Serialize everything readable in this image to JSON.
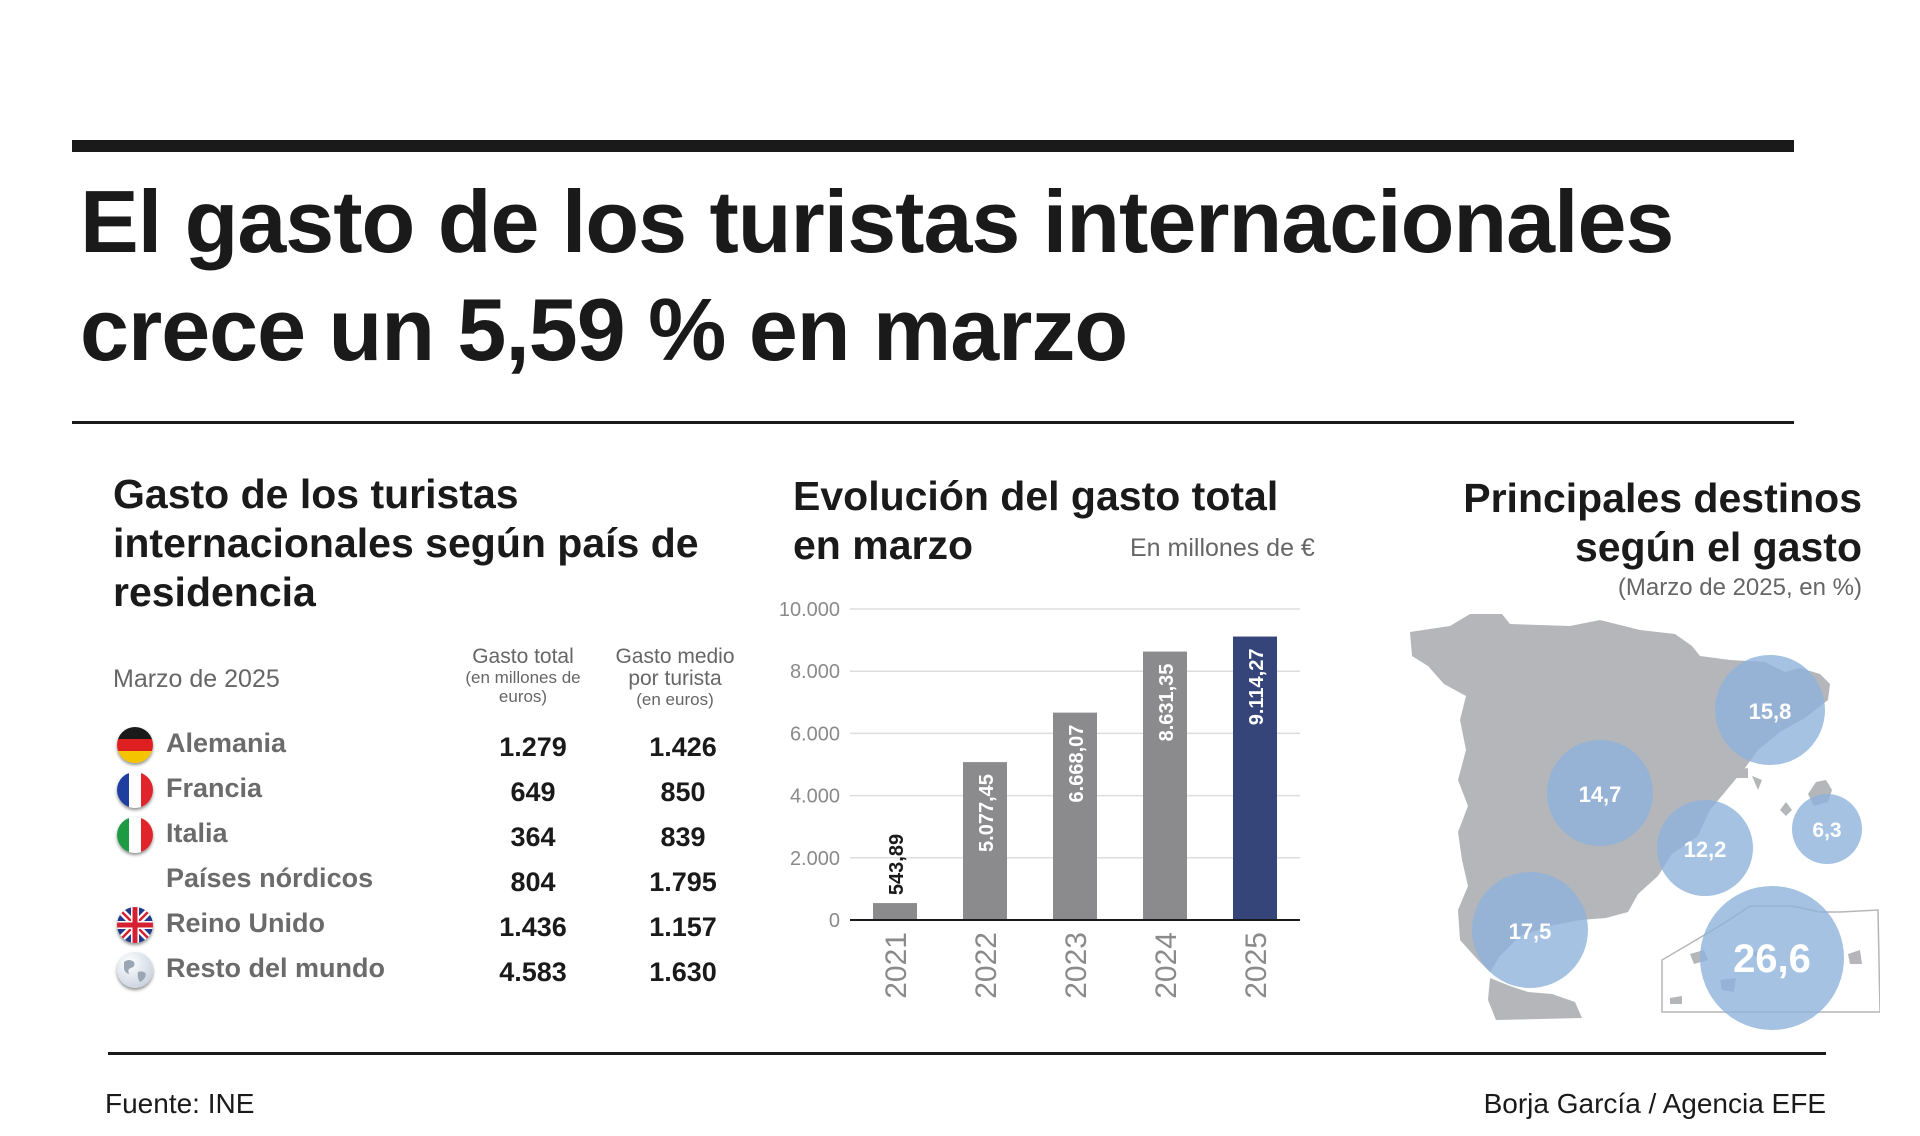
{
  "headline": "El gasto de los turistas internacionales crece un 5,59 % en marzo",
  "table": {
    "title": "Gasto de los turistas internacionales según país de residencia",
    "period": "Marzo de 2025",
    "columns": {
      "total": {
        "label": "Gasto total",
        "sub": "(en millones de euros)"
      },
      "avg": {
        "label": "Gasto medio por turista",
        "sub": "(en euros)"
      }
    },
    "rows": [
      {
        "country": "Alemania",
        "flag": "germany-flag-icon",
        "total": "1.279",
        "avg": "1.426"
      },
      {
        "country": "Francia",
        "flag": "france-flag-icon",
        "total": "649",
        "avg": "850"
      },
      {
        "country": "Italia",
        "flag": "italy-flag-icon",
        "total": "364",
        "avg": "839"
      },
      {
        "country": "Países nórdicos",
        "flag": "",
        "total": "804",
        "avg": "1.795"
      },
      {
        "country": "Reino Unido",
        "flag": "uk-flag-icon",
        "total": "1.436",
        "avg": "1.157"
      },
      {
        "country": "Resto del mundo",
        "flag": "globe-icon",
        "total": "4.583",
        "avg": "1.630"
      }
    ]
  },
  "chart_data": {
    "type": "bar",
    "title": "Evolución del gasto total en marzo",
    "unit": "En millones de €",
    "categories": [
      "2021",
      "2022",
      "2023",
      "2024",
      "2025"
    ],
    "values": [
      543.89,
      5077.45,
      6668.07,
      8631.35,
      9114.27
    ],
    "value_labels": [
      "543,89",
      "5.077,45",
      "6.668,07",
      "8.631,35",
      "9.114,27"
    ],
    "ylim": [
      0,
      10000
    ],
    "yticks": [
      0,
      2000,
      4000,
      6000,
      8000,
      10000
    ],
    "ytick_labels": [
      "0",
      "2.000",
      "4.000",
      "6.000",
      "8.000",
      "10.000"
    ],
    "grid": true,
    "colors": {
      "default": "#8b8b8e",
      "highlight": "#35457a",
      "grid": "#dddddd",
      "axis": "#1a1a1a",
      "tick_label": "#8a8a8a"
    }
  },
  "map": {
    "title": "Principales destinos según el gasto",
    "subtitle": "(Marzo de 2025, en %)",
    "destinations": [
      {
        "region": "Cataluña",
        "value": 15.8,
        "label": "15,8"
      },
      {
        "region": "Comunidad de Madrid",
        "value": 14.7,
        "label": "14,7"
      },
      {
        "region": "Comunitat Valenciana",
        "value": 12.2,
        "label": "12,2"
      },
      {
        "region": "Illes Balears",
        "value": 6.3,
        "label": "6,3"
      },
      {
        "region": "Andalucía",
        "value": 17.5,
        "label": "17,5"
      },
      {
        "region": "Canarias",
        "value": 26.6,
        "label": "26,6"
      }
    ],
    "colors": {
      "land": "#b4b6b9",
      "bubble": "#8fb3dc",
      "bubble_text": "#ffffff"
    }
  },
  "footer": {
    "source": "Fuente: INE",
    "credit": "Borja García / Agencia EFE"
  }
}
